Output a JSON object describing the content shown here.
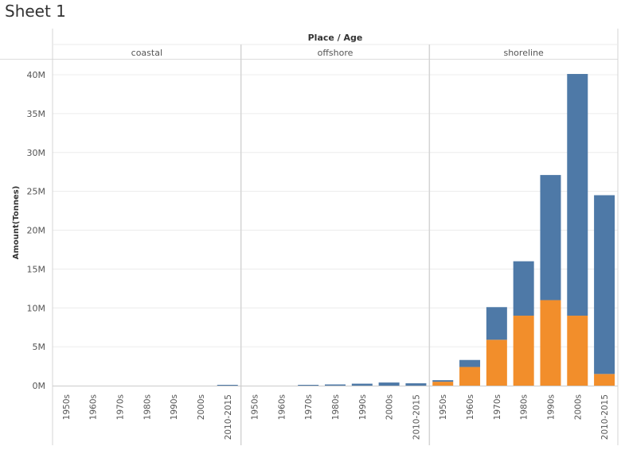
{
  "sheet": {
    "title": "Sheet 1"
  },
  "chart_data": {
    "type": "bar",
    "stacked": true,
    "header": "Place / Age",
    "ylabel": "Amount(Tonnes)",
    "ylim": [
      0,
      41000000
    ],
    "yticks": [
      {
        "value": 0,
        "label": "0M"
      },
      {
        "value": 5000000,
        "label": "5M"
      },
      {
        "value": 10000000,
        "label": "10M"
      },
      {
        "value": 15000000,
        "label": "15M"
      },
      {
        "value": 20000000,
        "label": "20M"
      },
      {
        "value": 25000000,
        "label": "25M"
      },
      {
        "value": 30000000,
        "label": "30M"
      },
      {
        "value": 35000000,
        "label": "35M"
      },
      {
        "value": 40000000,
        "label": "40M"
      }
    ],
    "categories": [
      "1950s",
      "1960s",
      "1970s",
      "1980s",
      "1990s",
      "2000s",
      "2010-2015"
    ],
    "colors": {
      "orange": "#f28e2b",
      "blue": "#4e79a7",
      "grid": "#ececec",
      "divider": "#d4d4d4"
    },
    "panels": [
      {
        "name": "coastal",
        "orange": [
          0,
          0,
          0,
          0,
          0,
          0,
          0
        ],
        "blue": [
          0,
          0,
          0,
          0,
          0,
          0,
          100000
        ]
      },
      {
        "name": "offshore",
        "orange": [
          0,
          0,
          0,
          0,
          0,
          0,
          0
        ],
        "blue": [
          0,
          0,
          50000,
          150000,
          250000,
          400000,
          300000
        ]
      },
      {
        "name": "shoreline",
        "orange": [
          500000,
          2400000,
          5900000,
          9000000,
          11000000,
          9000000,
          1500000
        ],
        "blue": [
          200000,
          900000,
          4200000,
          7000000,
          16100000,
          31100000,
          23000000
        ]
      }
    ]
  }
}
